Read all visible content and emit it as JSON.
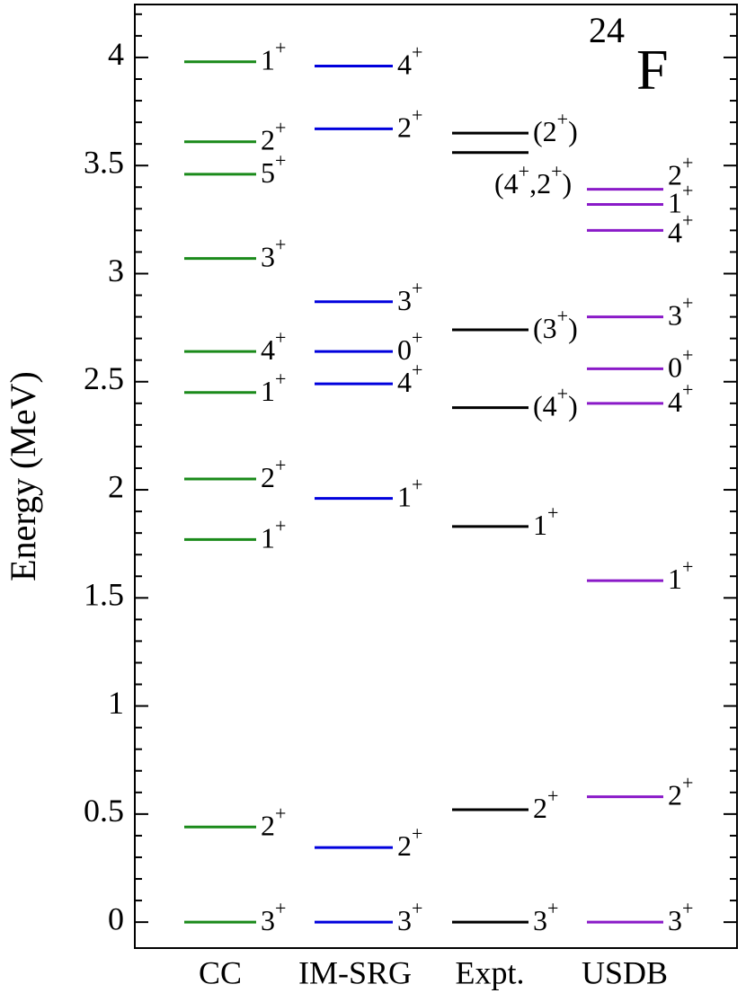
{
  "chart_data": {
    "type": "level_scheme",
    "y_label": "Energy (MeV)",
    "annotation": {
      "mass_number": "24",
      "symbol": "F"
    },
    "ylim": [
      -0.12,
      4.245
    ],
    "yticks": [
      0,
      0.5,
      1,
      1.5,
      2,
      2.5,
      3,
      3.5,
      4
    ],
    "yminor_ticks": [
      0.1,
      0.2,
      0.3,
      0.4,
      0.6,
      0.7,
      0.8,
      0.9,
      1.1,
      1.2,
      1.3,
      1.4,
      1.6,
      1.7,
      1.8,
      1.9,
      2.1,
      2.2,
      2.3,
      2.4,
      2.6,
      2.7,
      2.8,
      2.9,
      3.1,
      3.2,
      3.3,
      3.4,
      3.6,
      3.7,
      3.8,
      3.9,
      4.1,
      4.2
    ],
    "series": [
      {
        "name": "CC",
        "color": "#1a8a1a",
        "values": [
          3.98,
          3.61,
          3.46,
          3.07,
          2.64,
          2.45,
          2.05,
          1.77,
          0.44,
          0
        ],
        "labels": [
          "1+",
          "2+",
          "5+",
          "3+",
          "4+",
          "1+",
          "2+",
          "1+",
          "2+",
          "3+"
        ]
      },
      {
        "name": "IM-SRG",
        "color": "#0000dd",
        "values": [
          3.96,
          3.67,
          2.87,
          2.64,
          2.49,
          1.96,
          0.345,
          0
        ],
        "labels": [
          "4+",
          "2+",
          "3+",
          "0+",
          "4+",
          "1+",
          "2+",
          "3+"
        ]
      },
      {
        "name": "Expt.",
        "color": "#000000",
        "values": [
          3.65,
          3.56,
          2.74,
          2.38,
          1.83,
          0.52,
          0
        ],
        "labels": [
          "(2+)",
          "(4+,2+)",
          "(3+)",
          "(4+)",
          "1+",
          "2+",
          "3+"
        ]
      },
      {
        "name": "USDB",
        "color": "#8a1ac8",
        "values": [
          3.39,
          3.32,
          3.2,
          2.8,
          2.56,
          2.4,
          1.58,
          0.58,
          0
        ],
        "labels": [
          "2+",
          "1+",
          "4+",
          "3+",
          "0+",
          "4+",
          "1+",
          "2+",
          "3+"
        ]
      }
    ]
  }
}
